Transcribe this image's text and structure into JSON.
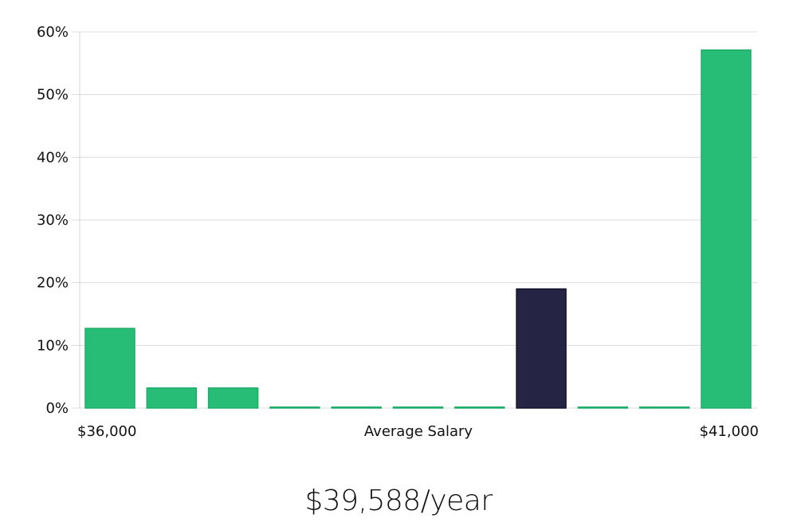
{
  "chart_data": {
    "type": "bar",
    "title": "",
    "xlabel": "Average Salary",
    "ylabel": "",
    "x_range_labels": {
      "min": "$36,000",
      "max": "$41,000"
    },
    "y_ticks": [
      0,
      10,
      20,
      30,
      40,
      50,
      60
    ],
    "y_tick_labels": [
      "0%",
      "10%",
      "20%",
      "30%",
      "40%",
      "50%",
      "60%"
    ],
    "ylim": [
      0,
      60
    ],
    "values": [
      12.7,
      3.2,
      3.2,
      0,
      0,
      0,
      0,
      19.0,
      0,
      0,
      57.1
    ],
    "highlight_index": 7,
    "colors": {
      "bar": "#27bd76",
      "bar_edge": "#1fae6a",
      "highlight": "#262444",
      "highlight_edge": "#14132b"
    }
  },
  "summary": {
    "salary_text": "$39,588/year"
  }
}
